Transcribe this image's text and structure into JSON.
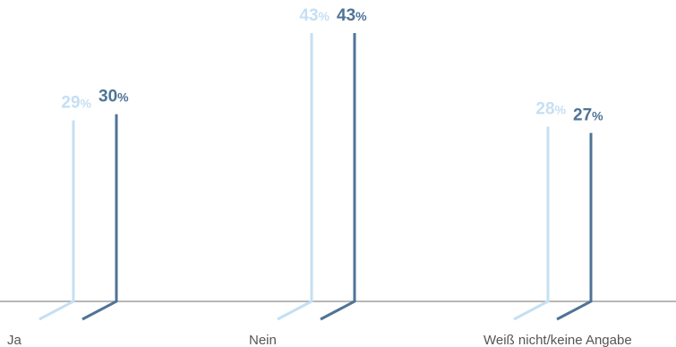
{
  "chart_data": {
    "type": "bar",
    "categories": [
      "Ja",
      "Nein",
      "Weiß nicht/keine Angabe"
    ],
    "series": [
      {
        "values": [
          29,
          43,
          28
        ],
        "labels": [
          "29%",
          "43%",
          "28%"
        ],
        "color": "#c5dff3"
      },
      {
        "values": [
          30,
          43,
          27
        ],
        "labels": [
          "30%",
          "43%",
          "27%"
        ],
        "color": "#4f7396"
      }
    ],
    "ylim": [
      0,
      43
    ],
    "axis_color": "#8c8c8c",
    "grid": false
  }
}
